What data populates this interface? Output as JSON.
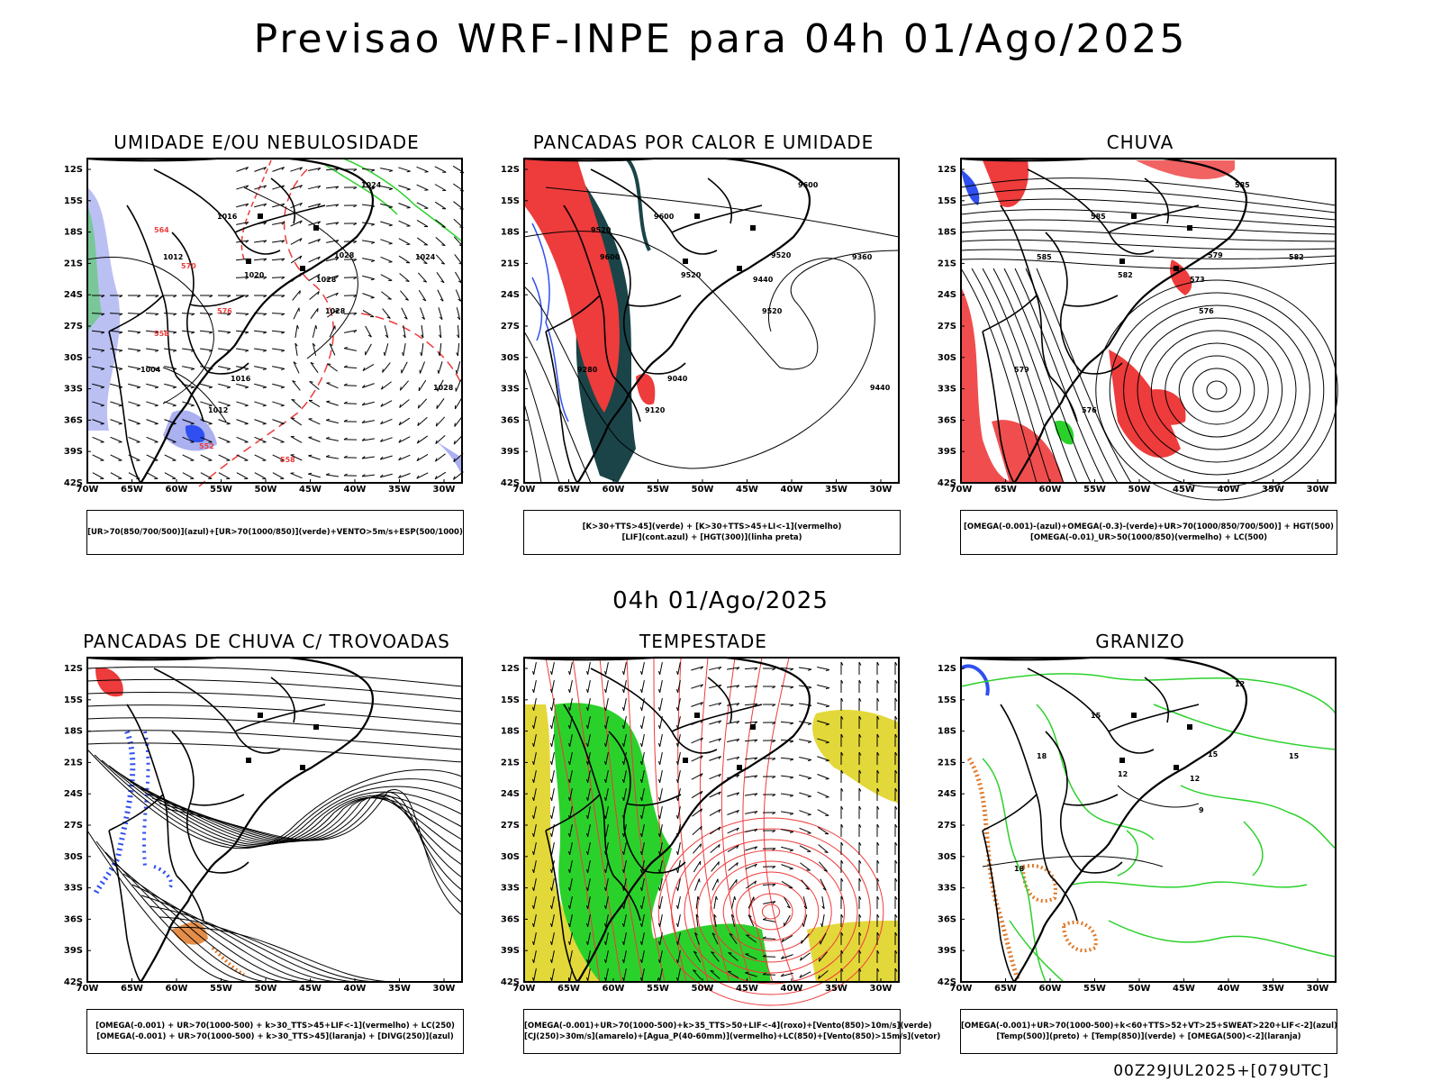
{
  "title": "Previsao WRF-INPE  para 04h 01/Ago/2025",
  "mid_date": "04h 01/Ago/2025",
  "footer": "00Z29JUL2025+[079UTC]",
  "lat_labels": [
    "12S",
    "15S",
    "18S",
    "21S",
    "24S",
    "27S",
    "30S",
    "33S",
    "36S",
    "39S",
    "42S"
  ],
  "lon_labels": [
    "70W",
    "65W",
    "60W",
    "55W",
    "50W",
    "45W",
    "40W",
    "35W",
    "30W"
  ],
  "colors": {
    "blue": "#2f4ff0",
    "lightblue": "#aab0f0",
    "green": "#2bd12b",
    "red": "#ee3b3b",
    "darkteal": "#1a4448",
    "yellow": "#e3d83a",
    "orange": "#e07a2a"
  },
  "panels": [
    {
      "title": "UMIDADE E/OU NEBULOSIDADE",
      "legend": [
        "[UR>70(850/700/500)](azul)+[UR>70(1000/850)](verde)+VENTO>5m/s+ESP(500/1000)"
      ],
      "contour_labels": [
        "1024",
        "1016",
        "1012",
        "1020",
        "1028",
        "1028",
        "1028",
        "1024",
        "1004",
        "1012",
        "1016",
        "1028",
        "564",
        "570",
        "576",
        "558",
        "552",
        "558"
      ]
    },
    {
      "title": "PANCADAS POR CALOR E UMIDADE",
      "legend": [
        "[K>30+TTS>45](verde) + [K>30+TTS>45+LI<-1](vermelho)",
        "[LIF](cont.azul) + [HGT(300)](linha preta)"
      ],
      "contour_labels": [
        "9600",
        "9600",
        "9600",
        "9520",
        "9520",
        "9520",
        "9440",
        "9360",
        "9280",
        "9120",
        "9040",
        "9440",
        "9520"
      ]
    },
    {
      "title": "CHUVA",
      "legend": [
        "[OMEGA(-0.001)-(azul)+OMEGA(-0.3)-(verde)+UR>70(1000/850/700/500)] + HGT(500)",
        "[OMEGA(-0.01)_UR>50(1000/850)(vermelho) + LC(500)"
      ],
      "contour_labels": [
        "585",
        "585",
        "585",
        "582",
        "579",
        "576",
        "573",
        "582",
        "579",
        "576"
      ]
    },
    {
      "title": "PANCADAS DE CHUVA C/ TROVOADAS",
      "legend": [
        "[OMEGA(-0.001) + UR>70(1000-500) + k>30_TTS>45+LIF<-1](vermelho) + LC(250)",
        "[OMEGA(-0.001) + UR>70(1000-500) + k>30_TTS>45](laranja) + [DIVG(250)](azul)"
      ]
    },
    {
      "title": "TEMPESTADE",
      "legend": [
        "[OMEGA(-0.001)+UR>70(1000-500)+k>35_TTS>50+LIF<-4](roxo)+[Vento(850)>10m/s](verde)",
        "[CJ(250)>30m/s](amarelo)+[Agua_P(40-60mm)](vermelho)+LC(850)+[Vento(850)>15m/s](vetor)"
      ]
    },
    {
      "title": "GRANIZO",
      "legend": [
        "[OMEGA(-0.001)+UR>70(1000-500)+k<60+TTS>52+VT>25+SWEAT>220+LIF<-2](azul)",
        "[Temp(500)](preto) + [Temp(850)](verde) + [OMEGA(500)<-2](laranja)"
      ],
      "contour_labels": [
        "12",
        "15",
        "18",
        "12",
        "15",
        "9",
        "12",
        "15",
        "18"
      ]
    }
  ]
}
